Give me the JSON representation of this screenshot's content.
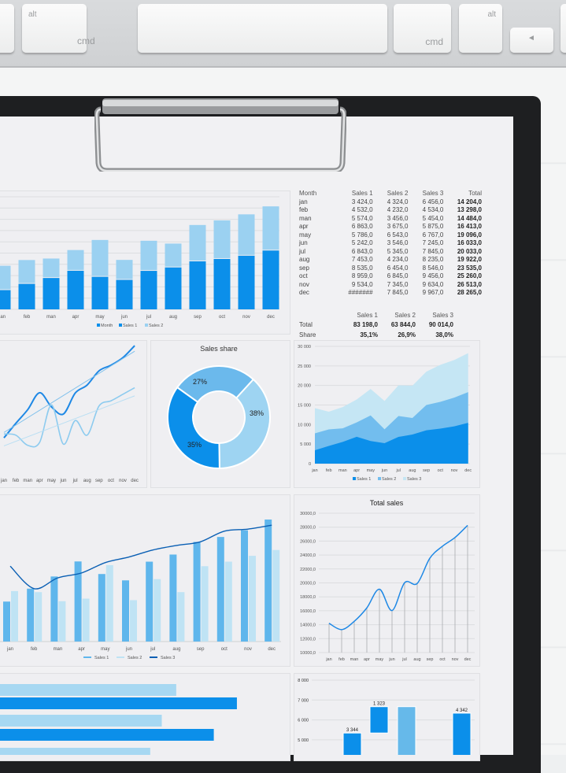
{
  "keyboard": {
    "keys": [
      {
        "top": "alt",
        "bottom": "cmd"
      },
      {
        "top": "",
        "bottom": ""
      },
      {
        "top": "",
        "bottom": "cmd"
      },
      {
        "top": "alt",
        "bottom": ""
      },
      {
        "top": "◄",
        "bottom": ""
      }
    ]
  },
  "colors": {
    "sales1": "#0b8fea",
    "sales2": "#9bd1f1",
    "sales3": "#c5e6f4",
    "dark_line": "#0a5fb4",
    "accent": "#1e88e5"
  },
  "table": {
    "headers": [
      "Month",
      "Sales 1",
      "Sales 2",
      "Sales 3",
      "Total"
    ],
    "rows": [
      [
        "jan",
        "3 424,0",
        "4 324,0",
        "6 456,0",
        "14 204,0"
      ],
      [
        "feb",
        "4 532,0",
        "4 232,0",
        "4 534,0",
        "13 298,0"
      ],
      [
        "man",
        "5 574,0",
        "3 456,0",
        "5 454,0",
        "14 484,0"
      ],
      [
        "apr",
        "6 863,0",
        "3 675,0",
        "5 875,0",
        "16 413,0"
      ],
      [
        "may",
        "5 786,0",
        "6 543,0",
        "6 767,0",
        "19 096,0"
      ],
      [
        "jun",
        "5 242,0",
        "3 546,0",
        "7 245,0",
        "16 033,0"
      ],
      [
        "jul",
        "6 843,0",
        "5 345,0",
        "7 845,0",
        "20 033,0"
      ],
      [
        "aug",
        "7 453,0",
        "4 234,0",
        "8 235,0",
        "19 922,0"
      ],
      [
        "sep",
        "8 535,0",
        "6 454,0",
        "8 546,0",
        "23 535,0"
      ],
      [
        "oct",
        "8 959,0",
        "6 845,0",
        "9 456,0",
        "25 260,0"
      ],
      [
        "nov",
        "9 534,0",
        "7 345,0",
        "9 634,0",
        "26 513,0"
      ],
      [
        "dec",
        "#######",
        "7 845,0",
        "9 967,0",
        "28 265,0"
      ]
    ],
    "summary_headers": [
      "",
      "Sales 1",
      "Sales 2",
      "Sales 3"
    ],
    "summary_rows": [
      [
        "Total",
        "83 198,0",
        "63 844,0",
        "90 014,0"
      ],
      [
        "Share",
        "35,1%",
        "26,9%",
        "38,0%"
      ]
    ]
  },
  "chart_data": [
    {
      "type": "bar",
      "stacked": true,
      "categories": [
        "jan",
        "feb",
        "man",
        "apr",
        "may",
        "jun",
        "jul",
        "aug",
        "sep",
        "oct",
        "nov",
        "dec"
      ],
      "legend": [
        "Month",
        "Sales 1",
        "Sales 2"
      ],
      "legend_position": "bottom",
      "grid": true,
      "series": [
        {
          "name": "Sales 1",
          "values": [
            3424,
            4532,
            5574,
            6863,
            5786,
            5242,
            6843,
            7453,
            8535,
            8959,
            9534,
            10453
          ]
        },
        {
          "name": "Sales 2",
          "values": [
            4324,
            4232,
            3456,
            3675,
            6543,
            3546,
            5345,
            4234,
            6454,
            6845,
            7345,
            7845
          ]
        }
      ],
      "ylim": [
        0,
        20000
      ]
    },
    {
      "type": "line",
      "categories": [
        "jan",
        "feb",
        "man",
        "apr",
        "may",
        "jun",
        "jul",
        "aug",
        "sep",
        "oct",
        "nov",
        "dec"
      ],
      "series": [
        {
          "values": [
            3424,
            4532,
            5574,
            6863,
            5786,
            5242,
            6843,
            7453,
            8535,
            8959,
            9534,
            10453
          ]
        },
        {
          "values": [
            4324,
            4232,
            3456,
            3675,
            6543,
            3546,
            5345,
            4234,
            6454,
            6845,
            7345,
            7845
          ]
        }
      ],
      "trendlines": true,
      "ylim": [
        2000,
        11000
      ]
    },
    {
      "type": "pie",
      "donut": true,
      "title": "Sales share",
      "labels": [
        "27%",
        "38%",
        "35%"
      ],
      "values": [
        26.9,
        38.0,
        35.1
      ]
    },
    {
      "type": "area",
      "stacked": true,
      "categories": [
        "jan",
        "feb",
        "man",
        "apr",
        "may",
        "jun",
        "jul",
        "aug",
        "sep",
        "oct",
        "nov",
        "dec"
      ],
      "legend": [
        "Sales 1",
        "Sales 2",
        "Sales 3"
      ],
      "legend_position": "bottom",
      "yticks": [
        "0",
        "5 000",
        "10 000",
        "15 000",
        "20 000",
        "25 000",
        "30 000"
      ],
      "ylim": [
        0,
        30000
      ],
      "grid": true
    },
    {
      "type": "bar+line",
      "categories": [
        "jan",
        "feb",
        "man",
        "apr",
        "may",
        "jun",
        "jul",
        "aug",
        "sep",
        "oct",
        "nov",
        "dec"
      ],
      "legend": [
        "Sales 1",
        "Sales 2",
        "Sales 3"
      ],
      "legend_position": "bottom",
      "ylim": [
        0,
        11000
      ]
    },
    {
      "type": "line",
      "title": "Total sales",
      "categories": [
        "jan",
        "feb",
        "man",
        "apr",
        "may",
        "jun",
        "jul",
        "aug",
        "sep",
        "oct",
        "nov",
        "dec"
      ],
      "values": [
        14204,
        13298,
        14484,
        16413,
        19096,
        16033,
        20033,
        19922,
        23535,
        25260,
        26513,
        28265
      ],
      "yticks": [
        "10000,0",
        "12000,0",
        "14000,0",
        "16000,0",
        "18000,0",
        "20000,0",
        "22000,0",
        "24000,0",
        "26000,0",
        "28000,0",
        "30000,0"
      ],
      "ylim": [
        10000,
        30000
      ],
      "grid": true,
      "drop_lines": true
    },
    {
      "type": "bar",
      "orientation": "horizontal",
      "values_percent": [
        61,
        82,
        56,
        74,
        52
      ]
    },
    {
      "type": "waterfall",
      "yticks": [
        "5 000",
        "6 000",
        "7 000",
        "8 000"
      ],
      "bars": [
        {
          "low": 2000,
          "high": 5344,
          "label": "3 344",
          "kind": "delta"
        },
        {
          "low": 5344,
          "high": 6667,
          "label": "1 323",
          "kind": "delta"
        },
        {
          "low": 0,
          "high": 6667,
          "label": "",
          "kind": "total"
        },
        {
          "low": 2000,
          "high": 6342,
          "label": "4 342",
          "kind": "delta"
        }
      ],
      "ylim": [
        4000,
        8000
      ]
    }
  ]
}
